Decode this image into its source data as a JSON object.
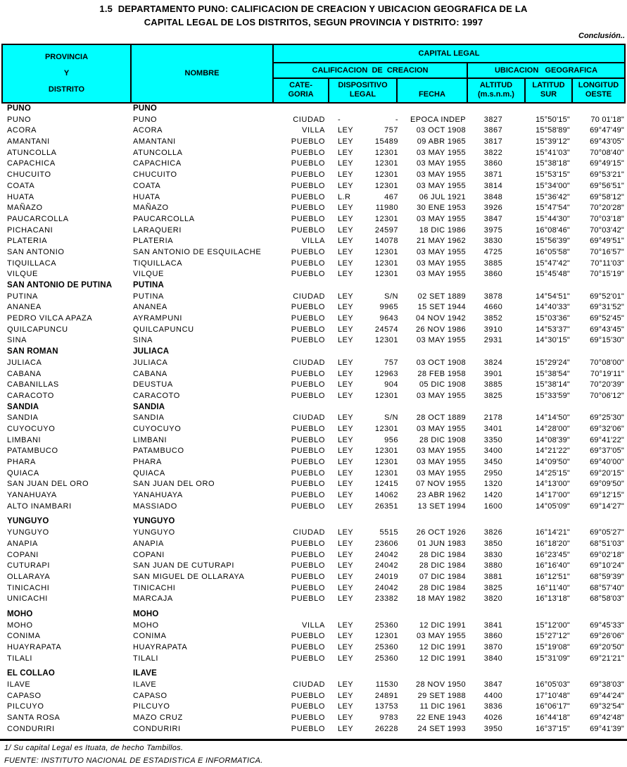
{
  "title": {
    "line1": "1.5  DEPARTAMENTO PUNO: CALIFICACION DE CREACION Y UBICACION GEOGRAFICA DE LA",
    "line2": "CAPITAL LEGAL DE LOS DISTRITOS, SEGUN PROVINCIA Y DISTRITO: 1997"
  },
  "note": "Conclusión..",
  "colors": {
    "header_bg": "#00ffff",
    "border": "#000000",
    "text": "#000000",
    "page_bg": "#ffffff"
  },
  "table": {
    "header": {
      "provincia": [
        "PROVINCIA",
        "Y",
        "DISTRITO"
      ],
      "nombre": "NOMBRE",
      "capital_legal": "CAPITAL LEGAL",
      "calificacion": "CALIFICACION  DE  CREACION",
      "ubicacion": "UBICACION   GEOGRAFICA",
      "categoria": [
        "CATE-",
        "GORIA"
      ],
      "dispositivo": [
        "DISPOSITIVO",
        "LEGAL"
      ],
      "fecha": "FECHA",
      "altitud": [
        "ALTITUD",
        "(m.s.n.m.)"
      ],
      "latitud": [
        "LATITUD",
        "SUR"
      ],
      "longitud": [
        "LONGITUD",
        "OESTE"
      ]
    },
    "columns_semantic": [
      "distrito",
      "nombre",
      "categoria",
      "dispositivo-tipo",
      "dispositivo-numero",
      "fecha",
      "altitud-msnm",
      "latitud-sur",
      "longitud-oeste"
    ],
    "sections": [
      {
        "provincia": "PUNO",
        "nombre": "PUNO",
        "gap_before": false,
        "rows": [
          [
            "PUNO",
            "PUNO",
            "CIUDAD",
            "-",
            "-",
            "EPOCA INDEP",
            "3827",
            "15°50'15\"",
            "70 01'18\""
          ],
          [
            "ACORA",
            "ACORA",
            "VILLA",
            "LEY",
            "757",
            "03 OCT 1908",
            "3867",
            "15°58'89\"",
            "69°47'49\""
          ],
          [
            "AMANTANI",
            "AMANTANI",
            "PUEBLO",
            "LEY",
            "15489",
            "09 ABR 1965",
            "3817",
            "15°39'12\"",
            "69°43'05\""
          ],
          [
            "ATUNCOLLA",
            "ATUNCOLLA",
            "PUEBLO",
            "LEY",
            "12301",
            "03 MAY 1955",
            "3822",
            "15°41'03\"",
            "70°08'40\""
          ],
          [
            "CAPACHICA",
            "CAPACHICA",
            "PUEBLO",
            "LEY",
            "12301",
            "03 MAY 1955",
            "3860",
            "15°38'18\"",
            "69°49'15\""
          ],
          [
            "CHUCUITO",
            "CHUCUITO",
            "PUEBLO",
            "LEY",
            "12301",
            "03 MAY 1955",
            "3871",
            "15°53'15\"",
            "69°53'21\""
          ],
          [
            "COATA",
            "COATA",
            "PUEBLO",
            "LEY",
            "12301",
            "03 MAY 1955",
            "3814",
            "15°34'00\"",
            "69°56'51\""
          ],
          [
            "HUATA",
            "HUATA",
            "PUEBLO",
            "L.R",
            "467",
            "06 JUL 1921",
            "3848",
            "15°36'42\"",
            "69°58'12\""
          ],
          [
            "MAÑAZO",
            "MAÑAZO",
            "PUEBLO",
            "LEY",
            "11980",
            "30 ENE 1953",
            "3926",
            "15°47'54\"",
            "70°20'28\""
          ],
          [
            "PAUCARCOLLA",
            "PAUCARCOLLA",
            "PUEBLO",
            "LEY",
            "12301",
            "03 MAY 1955",
            "3847",
            "15°44'30\"",
            "70°03'18\""
          ],
          [
            "PICHACANI",
            "LARAQUERI",
            "PUEBLO",
            "LEY",
            "24597",
            "18 DIC 1986",
            "3975",
            "16°08'46\"",
            "70°03'42\""
          ],
          [
            "PLATERIA",
            "PLATERIA",
            "VILLA",
            "LEY",
            "14078",
            "21 MAY 1962",
            "3830",
            "15°56'39\"",
            "69°49'51\""
          ],
          [
            "SAN ANTONIO",
            "SAN ANTONIO DE ESQUILACHE",
            "PUEBLO",
            "LEY",
            "12301",
            "03 MAY 1955",
            "4725",
            "16°05'58\"",
            "70°16'57\""
          ],
          [
            "TIQUILLACA",
            "TIQUILLACA",
            "PUEBLO",
            "LEY",
            "12301",
            "03 MAY 1955",
            "3885",
            "15°47'42\"",
            "70°11'03\""
          ],
          [
            "VILQUE",
            "VILQUE",
            "PUEBLO",
            "LEY",
            "12301",
            "03 MAY 1955",
            "3860",
            "15°45'48\"",
            "70°15'19\""
          ]
        ]
      },
      {
        "provincia": "SAN ANTONIO DE PUTINA",
        "nombre": "PUTINA",
        "gap_before": false,
        "rows": [
          [
            "PUTINA",
            "PUTINA",
            "CIUDAD",
            "LEY",
            "S/N",
            "02 SET 1889",
            "3878",
            "14°54'51\"",
            "69°52'01\""
          ],
          [
            "ANANEA",
            "ANANEA",
            "PUEBLO",
            "LEY",
            "9965",
            "15 SET 1944",
            "4660",
            "14°40'33\"",
            "69°31'52\""
          ],
          [
            "PEDRO VILCA APAZA",
            "AYRAMPUNI",
            "PUEBLO",
            "LEY",
            "9643",
            "04 NOV 1942",
            "3852",
            "15°03'36\"",
            "69°52'45\""
          ],
          [
            "QUILCAPUNCU",
            "QUILCAPUNCU",
            "PUEBLO",
            "LEY",
            "24574",
            "26 NOV 1986",
            "3910",
            "14°53'37\"",
            "69°43'45\""
          ],
          [
            "SINA",
            "SINA",
            "PUEBLO",
            "LEY",
            "12301",
            "03 MAY 1955",
            "2931",
            "14°30'15\"",
            "69°15'30\""
          ]
        ]
      },
      {
        "provincia": "SAN ROMAN",
        "nombre": "JULIACA",
        "gap_before": false,
        "rows": [
          [
            "JULIACA",
            "JULIACA",
            "CIUDAD",
            "LEY",
            "757",
            "03 OCT 1908",
            "3824",
            "15°29'24\"",
            "70°08'00\""
          ],
          [
            "CABANA",
            "CABANA",
            "PUEBLO",
            "LEY",
            "12963",
            "28 FEB 1958",
            "3901",
            "15°38'54\"",
            "70°19'11\""
          ],
          [
            "CABANILLAS",
            "DEUSTUA",
            "PUEBLO",
            "LEY",
            "904",
            "05 DIC 1908",
            "3885",
            "15°38'14\"",
            "70°20'39\""
          ],
          [
            "CARACOTO",
            "CARACOTO",
            "PUEBLO",
            "LEY",
            "12301",
            "03 MAY 1955",
            "3825",
            "15°33'59\"",
            "70°06'12\""
          ]
        ]
      },
      {
        "provincia": "SANDIA",
        "nombre": "SANDIA",
        "gap_before": false,
        "rows": [
          [
            "SANDIA",
            "SANDIA",
            "CIUDAD",
            "LEY",
            "S/N",
            "28 OCT 1889",
            "2178",
            "14°14'50\"",
            "69°25'30\""
          ],
          [
            "CUYOCUYO",
            "CUYOCUYO",
            "PUEBLO",
            "LEY",
            "12301",
            "03 MAY 1955",
            "3401",
            "14°28'00\"",
            "69°32'06\""
          ],
          [
            "LIMBANI",
            "LIMBANI",
            "PUEBLO",
            "LEY",
            "956",
            "28 DIC 1908",
            "3350",
            "14°08'39\"",
            "69°41'22\""
          ],
          [
            "PATAMBUCO",
            "PATAMBUCO",
            "PUEBLO",
            "LEY",
            "12301",
            "03 MAY 1955",
            "3400",
            "14°21'22\"",
            "69°37'05\""
          ],
          [
            "PHARA",
            "PHARA",
            "PUEBLO",
            "LEY",
            "12301",
            "03 MAY 1955",
            "3450",
            "14°09'50\"",
            "69°40'00\""
          ],
          [
            "QUIACA",
            "QUIACA",
            "PUEBLO",
            "LEY",
            "12301",
            "03 MAY 1955",
            "2950",
            "14°25'15\"",
            "69°20'15\""
          ],
          [
            "SAN JUAN DEL ORO",
            "SAN JUAN DEL ORO",
            "PUEBLO",
            "LEY",
            "12415",
            "07 NOV 1955",
            "1320",
            "14°13'00\"",
            "69°09'50\""
          ],
          [
            "YANAHUAYA",
            "YANAHUAYA",
            "PUEBLO",
            "LEY",
            "14062",
            "23 ABR 1962",
            "1420",
            "14°17'00\"",
            "69°12'15\""
          ],
          [
            "ALTO INAMBARI",
            "MASSIADO",
            "PUEBLO",
            "LEY",
            "26351",
            "13 SET 1994",
            "1600",
            "14°05'09\"",
            "69°14'27\""
          ]
        ]
      },
      {
        "provincia": "YUNGUYO",
        "nombre": "YUNGUYO",
        "gap_before": true,
        "rows": [
          [
            "YUNGUYO",
            "YUNGUYO",
            "CIUDAD",
            "LEY",
            "5515",
            "26 OCT 1926",
            "3826",
            "16°14'21\"",
            "69°05'27\""
          ],
          [
            "ANAPIA",
            "ANAPIA",
            "PUEBLO",
            "LEY",
            "23606",
            "01 JUN 1983",
            "3850",
            "16°18'20\"",
            "68°51'03\""
          ],
          [
            "COPANI",
            "COPANI",
            "PUEBLO",
            "LEY",
            "24042",
            "28 DIC 1984",
            "3830",
            "16°23'45\"",
            "69°02'18\""
          ],
          [
            "CUTURAPI",
            "SAN JUAN DE CUTURAPI",
            "PUEBLO",
            "LEY",
            "24042",
            "28 DIC 1984",
            "3880",
            "16°16'40\"",
            "69°10'24\""
          ],
          [
            "OLLARAYA",
            "SAN MIGUEL DE OLLARAYA",
            "PUEBLO",
            "LEY",
            "24019",
            "07 DIC 1984",
            "3881",
            "16°12'51\"",
            "68°59'39\""
          ],
          [
            "TINICACHI",
            "TINICACHI",
            "PUEBLO",
            "LEY",
            "24042",
            "28 DIC 1984",
            "3825",
            "16°11'40\"",
            "68°57'40\""
          ],
          [
            "UNICACHI",
            "MARCAJA",
            "PUEBLO",
            "LEY",
            "23382",
            "18 MAY 1982",
            "3820",
            "16°13'18\"",
            "68°58'03\""
          ]
        ]
      },
      {
        "provincia": "MOHO",
        "nombre": "MOHO",
        "gap_before": true,
        "rows": [
          [
            "MOHO",
            "MOHO",
            "VILLA",
            "LEY",
            "25360",
            "12 DIC 1991",
            "3841",
            "15°12'00\"",
            "69°45'33\""
          ],
          [
            "CONIMA",
            "CONIMA",
            "PUEBLO",
            "LEY",
            "12301",
            "03 MAY 1955",
            "3860",
            "15°27'12\"",
            "69°26'06\""
          ],
          [
            "HUAYRAPATA",
            "HUAYRAPATA",
            "PUEBLO",
            "LEY",
            "25360",
            "12 DIC 1991",
            "3870",
            "15°19'08\"",
            "69°20'50\""
          ],
          [
            "TILALI",
            "TILALI",
            "PUEBLO",
            "LEY",
            "25360",
            "12 DIC 1991",
            "3840",
            "15°31'09\"",
            "69°21'21\""
          ]
        ]
      },
      {
        "provincia": "EL COLLAO",
        "nombre": "ILAVE",
        "gap_before": true,
        "rows": [
          [
            "ILAVE",
            "ILAVE",
            "CIUDAD",
            "LEY",
            "11530",
            "28 NOV 1950",
            "3847",
            "16°05'03\"",
            "69°38'03\""
          ],
          [
            "CAPASO",
            "CAPASO",
            "PUEBLO",
            "LEY",
            "24891",
            "29 SET 1988",
            "4400",
            "17°10'48\"",
            "69°44'24\""
          ],
          [
            "PILCUYO",
            "PILCUYO",
            "PUEBLO",
            "LEY",
            "13753",
            "11 DIC 1961",
            "3836",
            "16°06'17\"",
            "69°32'54\""
          ],
          [
            "SANTA ROSA",
            "MAZO CRUZ",
            "PUEBLO",
            "LEY",
            "9783",
            "22 ENE 1943",
            "4026",
            "16°44'18\"",
            "69°42'48\""
          ],
          [
            "CONDURIRI",
            "CONDURIRI",
            "PUEBLO",
            "LEY",
            "26228",
            "24 SET 1993",
            "3950",
            "16°37'15\"",
            "69°41'39\""
          ]
        ]
      }
    ]
  },
  "footnotes": [
    "1/  Su capital Legal es Ituata, de hecho Tambillos.",
    "FUENTE: INSTITUTO NACIONAL DE ESTADISTICA E INFORMATICA."
  ]
}
